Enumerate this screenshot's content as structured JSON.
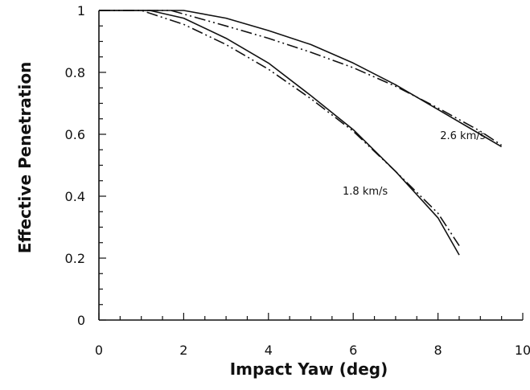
{
  "chart_data": {
    "type": "line",
    "title": "",
    "xlabel": "Impact Yaw (deg)",
    "ylabel": "Effective Penetration",
    "xlim": [
      0,
      10
    ],
    "ylim": [
      0,
      1
    ],
    "x_ticks": [
      "0",
      "2",
      "4",
      "6",
      "8",
      "10"
    ],
    "y_ticks": [
      "0",
      "0.2",
      "0.4",
      "0.6",
      "0.8",
      "1"
    ],
    "grid": false,
    "legend": "none",
    "series": [
      {
        "name": "2.6 km/s",
        "style": "solid",
        "points": [
          [
            0,
            1
          ],
          [
            2.0,
            1.0
          ],
          [
            3.0,
            0.975
          ],
          [
            4.0,
            0.935
          ],
          [
            5.0,
            0.89
          ],
          [
            6.0,
            0.83
          ],
          [
            7.0,
            0.76
          ],
          [
            8.0,
            0.68
          ],
          [
            9.0,
            0.6
          ],
          [
            9.5,
            0.56
          ]
        ]
      },
      {
        "name": "",
        "style": "dash-dot",
        "points": [
          [
            0,
            1
          ],
          [
            1.7,
            1.0
          ],
          [
            3.0,
            0.95
          ],
          [
            4.0,
            0.91
          ],
          [
            5.0,
            0.865
          ],
          [
            6.0,
            0.815
          ],
          [
            7.0,
            0.755
          ],
          [
            8.0,
            0.685
          ],
          [
            9.0,
            0.61
          ],
          [
            9.5,
            0.565
          ]
        ]
      },
      {
        "name": "1.8 km/s",
        "style": "solid",
        "points": [
          [
            0,
            1
          ],
          [
            1.2,
            1.0
          ],
          [
            2.0,
            0.975
          ],
          [
            3.0,
            0.91
          ],
          [
            4.0,
            0.83
          ],
          [
            5.0,
            0.725
          ],
          [
            6.0,
            0.615
          ],
          [
            7.0,
            0.48
          ],
          [
            8.0,
            0.33
          ],
          [
            8.5,
            0.21
          ]
        ]
      },
      {
        "name": "",
        "style": "dash-dot",
        "points": [
          [
            0,
            1
          ],
          [
            1.0,
            1.0
          ],
          [
            2.0,
            0.955
          ],
          [
            3.0,
            0.89
          ],
          [
            4.0,
            0.81
          ],
          [
            5.0,
            0.715
          ],
          [
            6.0,
            0.61
          ],
          [
            7.0,
            0.48
          ],
          [
            8.0,
            0.345
          ],
          [
            8.5,
            0.24
          ]
        ]
      }
    ],
    "annotations": [
      {
        "text": "2.6 km/s",
        "x": 8.05,
        "y": 0.585
      },
      {
        "text": "1.8 km/s",
        "x": 5.75,
        "y": 0.405
      }
    ]
  }
}
